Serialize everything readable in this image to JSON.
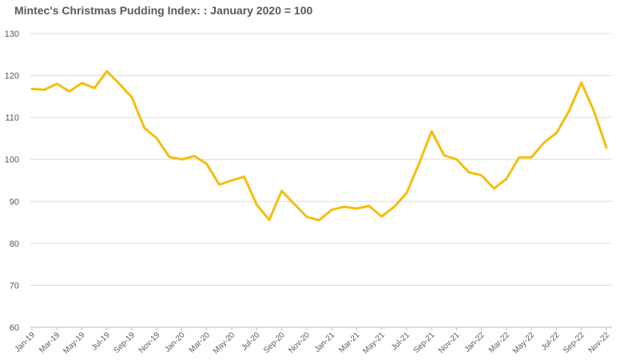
{
  "chart_data": {
    "type": "line",
    "title": "Mintec's Christmas Pudding Index: : January 2020 = 100",
    "xlabel": "",
    "ylabel": "",
    "ylim": [
      60,
      130
    ],
    "yticks": [
      60,
      70,
      80,
      90,
      100,
      110,
      120,
      130
    ],
    "grid": true,
    "legend": "none",
    "x": [
      "Jan-19",
      "Feb-19",
      "Mar-19",
      "Apr-19",
      "May-19",
      "Jun-19",
      "Jul-19",
      "Aug-19",
      "Sep-19",
      "Oct-19",
      "Nov-19",
      "Dec-19",
      "Jan-20",
      "Feb-20",
      "Mar-20",
      "Apr-20",
      "May-20",
      "Jun-20",
      "Jul-20",
      "Aug-20",
      "Sep-20",
      "Oct-20",
      "Nov-20",
      "Dec-20",
      "Jan-21",
      "Feb-21",
      "Mar-21",
      "Apr-21",
      "May-21",
      "Jun-21",
      "Jul-21",
      "Aug-21",
      "Sep-21",
      "Oct-21",
      "Nov-21",
      "Dec-21",
      "Jan-22",
      "Feb-22",
      "Mar-22",
      "Apr-22",
      "May-22",
      "Jun-22",
      "Jul-22",
      "Aug-22",
      "Sep-22",
      "Oct-22",
      "Nov-22"
    ],
    "x_tick_labels": [
      "Jan-19",
      "Mar-19",
      "May-19",
      "Jul-19",
      "Sep-19",
      "Nov-19",
      "Jan-20",
      "Mar-20",
      "May-20",
      "Jul-20",
      "Sep-20",
      "Nov-20",
      "Jan-21",
      "Mar-21",
      "May-21",
      "Jul-21",
      "Sep-21",
      "Nov-21",
      "Jan-22",
      "Mar-22",
      "May-22",
      "Jul-22",
      "Sep-22",
      "Nov-22"
    ],
    "series": [
      {
        "color": "#F5BE0B",
        "values": [
          116.8,
          116.6,
          118.0,
          116.2,
          118.2,
          117.0,
          121.0,
          118.0,
          114.8,
          107.5,
          105.0,
          100.6,
          100.0,
          100.8,
          98.9,
          94.0,
          95.0,
          95.9,
          89.2,
          85.6,
          92.5,
          89.4,
          86.3,
          85.5,
          88.0,
          88.7,
          88.3,
          88.9,
          86.4,
          88.7,
          92.0,
          99.0,
          106.7,
          101.0,
          100.0,
          96.9,
          96.2,
          93.1,
          95.4,
          100.5,
          100.5,
          104.0,
          106.3,
          111.5,
          118.3,
          111.5,
          102.8
        ]
      }
    ]
  }
}
